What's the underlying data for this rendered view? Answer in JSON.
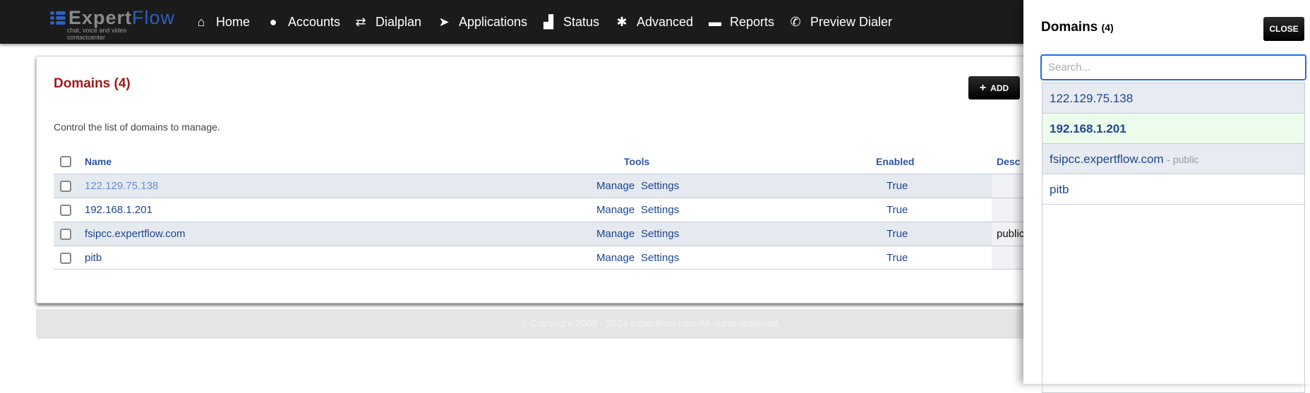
{
  "header": {
    "logo_text_a": "Expert",
    "logo_text_b": "Flow",
    "logo_tagline": "chat, voice and video contactcenter",
    "nav": [
      {
        "label": "Home",
        "icon": "home-icon"
      },
      {
        "label": "Accounts",
        "icon": "user-icon"
      },
      {
        "label": "Dialplan",
        "icon": "exchange-icon"
      },
      {
        "label": "Applications",
        "icon": "paper-plane-icon"
      },
      {
        "label": "Status",
        "icon": "bar-chart-icon"
      },
      {
        "label": "Advanced",
        "icon": "gear-icon"
      },
      {
        "label": "Reports",
        "icon": "credit-card-icon"
      },
      {
        "label": "Preview Dialer",
        "icon": "phone-icon"
      }
    ]
  },
  "main": {
    "title": "Domains (4)",
    "add_label": "ADD",
    "description": "Control the list of domains to manage.",
    "columns": {
      "name": "Name",
      "tools": "Tools",
      "enabled": "Enabled",
      "description": "Desc"
    },
    "rows": [
      {
        "name": "122.129.75.138",
        "manage": "Manage",
        "settings": "Settings",
        "enabled": "True",
        "description": ""
      },
      {
        "name": "192.168.1.201",
        "manage": "Manage",
        "settings": "Settings",
        "enabled": "True",
        "description": ""
      },
      {
        "name": "fsipcc.expertflow.com",
        "manage": "Manage",
        "settings": "Settings",
        "enabled": "True",
        "description": "public"
      },
      {
        "name": "pitb",
        "manage": "Manage",
        "settings": "Settings",
        "enabled": "True",
        "description": ""
      }
    ]
  },
  "footer": {
    "copyright": "© Copyright 2008 - 2024 expertflow.com All rights reserved."
  },
  "panel": {
    "title": "Domains",
    "count": "(4)",
    "close_label": "CLOSE",
    "search_placeholder": "Search...",
    "items": [
      {
        "name": "122.129.75.138",
        "note": ""
      },
      {
        "name": "192.168.1.201",
        "note": ""
      },
      {
        "name": "fsipcc.expertflow.com",
        "note": "- public"
      },
      {
        "name": "pitb",
        "note": ""
      }
    ]
  }
}
